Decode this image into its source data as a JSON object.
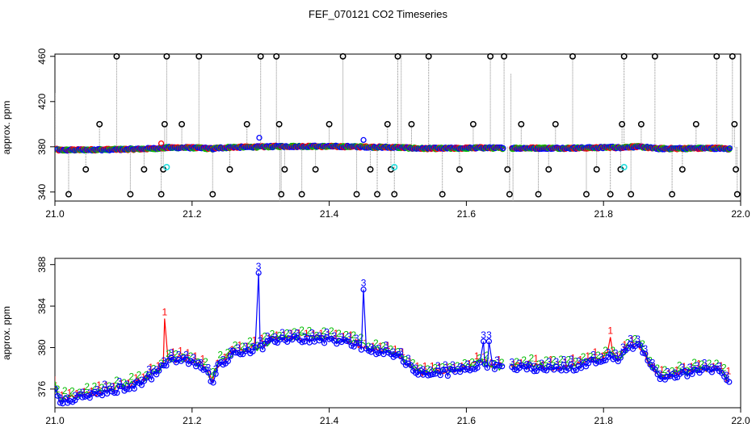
{
  "title": "FEF_070121  CO2 Timeseries",
  "colors": {
    "series1": "#ff0000",
    "series2": "#00bb00",
    "series3": "#0000ff",
    "cyan": "#22dddd",
    "flag": "#000000",
    "grid": "#888888"
  },
  "chart_data": [
    {
      "type": "scatter",
      "title": "",
      "xlabel": "",
      "ylabel": "approx. ppm",
      "xlim": [
        21.0,
        22.0
      ],
      "ylim": [
        332,
        462
      ],
      "xticks": [
        21.0,
        21.2,
        21.4,
        21.6,
        21.8,
        22.0
      ],
      "xtick_labels": [
        "21.0",
        "21.2",
        "21.4",
        "21.6",
        "21.8",
        "22.0"
      ],
      "yticks": [
        340,
        380,
        420,
        460
      ],
      "ytick_labels": [
        "340",
        "380",
        "420",
        "460"
      ],
      "flagged_points": [
        [
          21.02,
          338
        ],
        [
          21.045,
          360
        ],
        [
          21.065,
          400
        ],
        [
          21.09,
          460
        ],
        [
          21.11,
          338
        ],
        [
          21.13,
          360
        ],
        [
          21.155,
          338
        ],
        [
          21.158,
          360
        ],
        [
          21.16,
          400
        ],
        [
          21.163,
          460
        ],
        [
          21.185,
          400
        ],
        [
          21.21,
          460
        ],
        [
          21.23,
          338
        ],
        [
          21.255,
          360
        ],
        [
          21.28,
          400
        ],
        [
          21.3,
          460
        ],
        [
          21.323,
          460
        ],
        [
          21.327,
          400
        ],
        [
          21.33,
          338
        ],
        [
          21.335,
          360
        ],
        [
          21.36,
          338
        ],
        [
          21.38,
          360
        ],
        [
          21.4,
          400
        ],
        [
          21.42,
          460
        ],
        [
          21.44,
          338
        ],
        [
          21.46,
          360
        ],
        [
          21.47,
          338
        ],
        [
          21.485,
          400
        ],
        [
          21.49,
          360
        ],
        [
          21.495,
          338
        ],
        [
          21.5,
          460
        ],
        [
          21.52,
          400
        ],
        [
          21.545,
          460
        ],
        [
          21.565,
          338
        ],
        [
          21.59,
          360
        ],
        [
          21.61,
          400
        ],
        [
          21.635,
          460
        ],
        [
          21.655,
          460
        ],
        [
          21.66,
          360
        ],
        [
          21.663,
          338
        ],
        [
          21.68,
          400
        ],
        [
          21.705,
          338
        ],
        [
          21.72,
          360
        ],
        [
          21.73,
          400
        ],
        [
          21.755,
          460
        ],
        [
          21.775,
          338
        ],
        [
          21.79,
          360
        ],
        [
          21.81,
          338
        ],
        [
          21.825,
          360
        ],
        [
          21.827,
          400
        ],
        [
          21.83,
          460
        ],
        [
          21.84,
          338
        ],
        [
          21.855,
          400
        ],
        [
          21.875,
          460
        ],
        [
          21.9,
          338
        ],
        [
          21.915,
          360
        ],
        [
          21.935,
          400
        ],
        [
          21.965,
          460
        ],
        [
          21.988,
          460
        ],
        [
          21.991,
          400
        ],
        [
          21.993,
          360
        ],
        [
          21.995,
          338
        ]
      ],
      "cyan_points": [
        [
          21.163,
          362
        ],
        [
          21.495,
          362
        ],
        [
          21.83,
          362
        ]
      ],
      "blue_outliers": [
        [
          21.298,
          388
        ],
        [
          21.45,
          386
        ]
      ]
    },
    {
      "type": "line",
      "title": "",
      "xlabel": "",
      "ylabel": "approx. ppm",
      "xlim": [
        21.0,
        22.0
      ],
      "ylim": [
        374.2,
        388.6
      ],
      "xticks": [
        21.0,
        21.2,
        21.4,
        21.6,
        21.8,
        22.0
      ],
      "xtick_labels": [
        "21.0",
        "21.2",
        "21.4",
        "21.6",
        "21.8",
        "22.0"
      ],
      "yticks": [
        376,
        380,
        384,
        388
      ],
      "ytick_labels": [
        "376",
        "380",
        "384",
        "388"
      ],
      "series": [
        {
          "label": "1",
          "color": "#ff0000"
        },
        {
          "label": "2",
          "color": "#00bb00"
        },
        {
          "label": "3",
          "color": "#0000ff"
        }
      ],
      "baseline_knots": [
        [
          21.0,
          376.5
        ],
        [
          21.005,
          375.2
        ],
        [
          21.01,
          375.0
        ],
        [
          21.04,
          375.4
        ],
        [
          21.08,
          375.9
        ],
        [
          21.12,
          376.6
        ],
        [
          21.15,
          377.8
        ],
        [
          21.165,
          378.9
        ],
        [
          21.19,
          378.9
        ],
        [
          21.215,
          378.3
        ],
        [
          21.23,
          376.9
        ],
        [
          21.235,
          378.2
        ],
        [
          21.26,
          379.6
        ],
        [
          21.3,
          380.1
        ],
        [
          21.32,
          380.8
        ],
        [
          21.33,
          381.0
        ],
        [
          21.4,
          380.9
        ],
        [
          21.44,
          380.4
        ],
        [
          21.46,
          379.9
        ],
        [
          21.5,
          379.3
        ],
        [
          21.52,
          378.2
        ],
        [
          21.53,
          377.6
        ],
        [
          21.58,
          377.8
        ],
        [
          21.61,
          378.3
        ],
        [
          21.62,
          378.7
        ],
        [
          21.645,
          378.2
        ],
        [
          21.66,
          378.1
        ],
        [
          21.67,
          378.2
        ],
        [
          21.7,
          378.2
        ],
        [
          21.73,
          378.1
        ],
        [
          21.76,
          378.3
        ],
        [
          21.8,
          379.0
        ],
        [
          21.81,
          379.6
        ],
        [
          21.82,
          378.9
        ],
        [
          21.84,
          380.3
        ],
        [
          21.855,
          380.2
        ],
        [
          21.87,
          378.2
        ],
        [
          21.88,
          377.4
        ],
        [
          21.9,
          377.4
        ],
        [
          21.95,
          378.0
        ],
        [
          21.97,
          377.9
        ],
        [
          21.98,
          377.0
        ]
      ],
      "gap": [
        21.655,
        21.665
      ],
      "spikes": [
        {
          "series": "1",
          "x": 21.16,
          "y": 382.8
        },
        {
          "series": "3",
          "x": 21.297,
          "y": 387.2
        },
        {
          "series": "3",
          "x": 21.45,
          "y": 385.6
        },
        {
          "series": "3",
          "x": 21.625,
          "y": 380.6
        },
        {
          "series": "3",
          "x": 21.633,
          "y": 380.6
        },
        {
          "series": "1",
          "x": 21.81,
          "y": 381.0
        }
      ]
    }
  ]
}
